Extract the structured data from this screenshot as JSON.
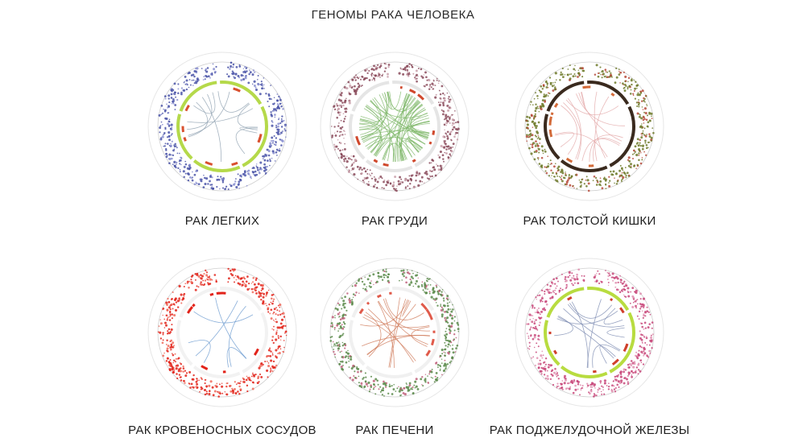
{
  "title": "ГЕНОМЫ РАКА ЧЕЛОВЕКА",
  "panels": [
    {
      "label": "РАК ЛЕГКИХ",
      "colors": {
        "primary": "#4b55a8",
        "secondary": "#8a8fd0",
        "ring": "#b5d94a",
        "accent": "#d9502f",
        "chord": "#8fa0b0"
      },
      "chords": 10
    },
    {
      "label": "РАК ГРУДИ",
      "colors": {
        "primary": "#8a4a5a",
        "secondary": "#c9a0aa",
        "ring": "#e5e5e5",
        "accent": "#d0482c",
        "chord": "#7fb86a"
      },
      "chords": 60
    },
    {
      "label": "РАК ТОЛСТОЙ КИШКИ",
      "colors": {
        "primary": "#6e7a2a",
        "secondary": "#b64a3a",
        "ring": "#3a2a1e",
        "accent": "#d36b3a",
        "chord": "#e3a9a9"
      },
      "chords": 14
    },
    {
      "label": "РАК КРОВЕНОСНЫХ СОСУДОВ",
      "colors": {
        "primary": "#e2231a",
        "secondary": "#f06a5a",
        "ring": "#f2f2f2",
        "accent": "#e2231a",
        "chord": "#6a9ad0"
      },
      "chords": 6
    },
    {
      "label": "РАК ПЕЧЕНИ",
      "colors": {
        "primary": "#5a8a4a",
        "secondary": "#c0607a",
        "ring": "#f0f0f0",
        "accent": "#e05a4a",
        "chord": "#d07a5a"
      },
      "chords": 16
    },
    {
      "label": "РАК ПОДЖЕЛУДОЧНОЙ ЖЕЛЕЗЫ",
      "colors": {
        "primary": "#c8487a",
        "secondary": "#e090b0",
        "ring": "#b8dc40",
        "accent": "#d0402c",
        "chord": "#7a8ab0"
      },
      "chords": 12
    }
  ]
}
